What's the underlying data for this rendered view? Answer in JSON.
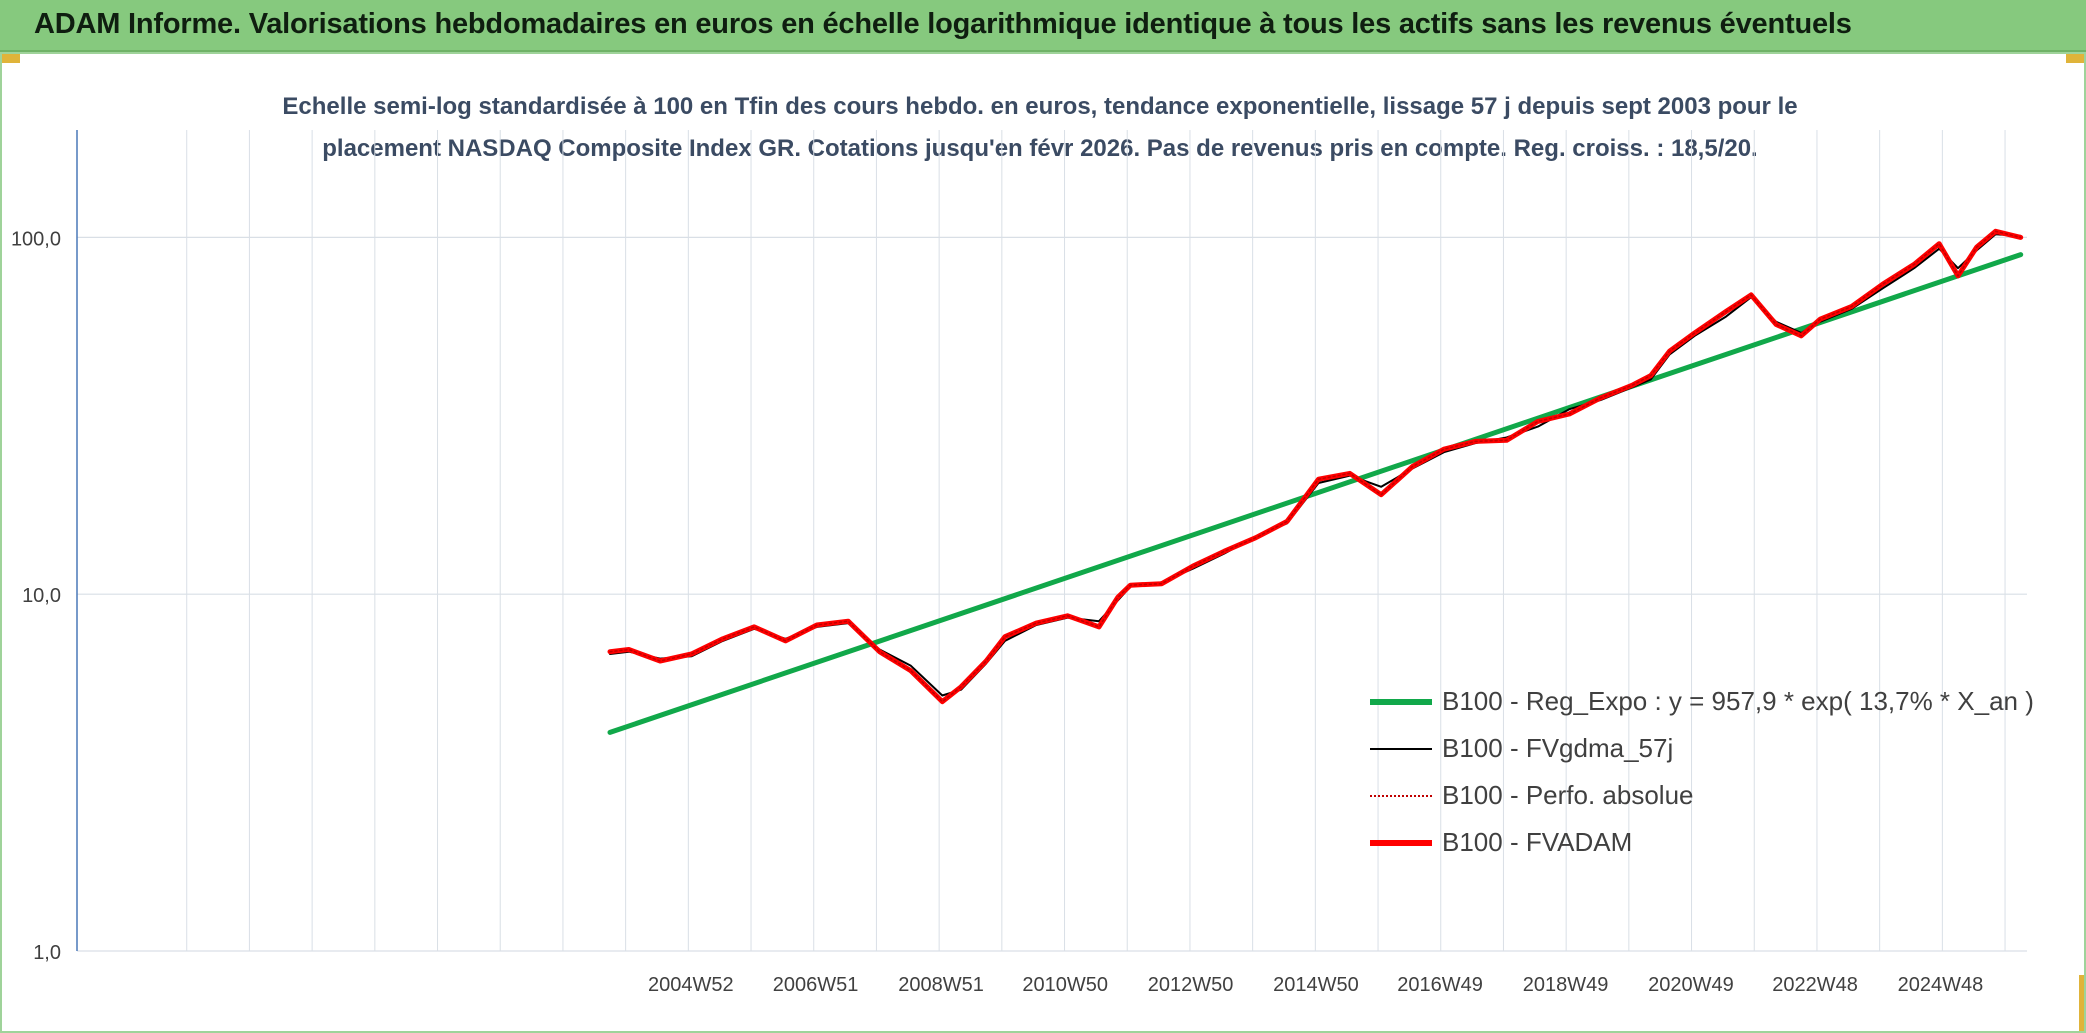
{
  "banner": {
    "title": "ADAM Informe. Valorisations hebdomadaires en euros en échelle logarithmique identique à tous les actifs sans les revenus éventuels"
  },
  "chart_data": {
    "type": "line",
    "title_line1": "Echelle semi-log standardisée à 100 en Tfin des cours hebdo. en euros, tendance exponentielle, lissage 57 j depuis sept 2003 pour le",
    "title_line2": "placement NASDAQ Composite Index GR. Cotations jusqu'en févr 2026. Pas de revenus pris en compte. Reg. croiss. : 18,5/20.",
    "y_scale": "log",
    "ylim": [
      1,
      200
    ],
    "xlim": [
      1995.2,
      2026.3
    ],
    "y_ticks": [
      {
        "value": 1,
        "label": "1,0"
      },
      {
        "value": 10,
        "label": "10,0"
      },
      {
        "value": 100,
        "label": "100,0"
      }
    ],
    "x_ticks": [
      {
        "value": 2004.99,
        "label": "2004W52"
      },
      {
        "value": 2006.98,
        "label": "2006W51"
      },
      {
        "value": 2008.98,
        "label": "2008W51"
      },
      {
        "value": 2010.96,
        "label": "2010W50"
      },
      {
        "value": 2012.96,
        "label": "2012W50"
      },
      {
        "value": 2014.96,
        "label": "2014W50"
      },
      {
        "value": 2016.94,
        "label": "2016W49"
      },
      {
        "value": 2018.94,
        "label": "2018W49"
      },
      {
        "value": 2020.94,
        "label": "2020W49"
      },
      {
        "value": 2022.92,
        "label": "2022W48"
      },
      {
        "value": 2024.92,
        "label": "2024W48"
      }
    ],
    "grid": true,
    "legend_position": "lower-right",
    "series": [
      {
        "name": "B100 - Reg_Expo : y = 957,9 * exp( 13,7% *  X_an )",
        "color": "#11a84a",
        "style": "thick",
        "x": [
          2003.7,
          2026.2
        ],
        "y": [
          4.1,
          89.5
        ]
      },
      {
        "name": "B100 - FVgdma_57j",
        "color": "#000000",
        "style": "thin",
        "x": [
          2003.7,
          2004.0,
          2004.5,
          2005.0,
          2005.5,
          2006.0,
          2006.5,
          2007.0,
          2007.5,
          2008.0,
          2008.5,
          2009.0,
          2009.3,
          2009.7,
          2010.0,
          2010.5,
          2011.0,
          2011.5,
          2011.8,
          2012.0,
          2012.5,
          2013.0,
          2013.5,
          2014.0,
          2014.5,
          2015.0,
          2015.5,
          2016.0,
          2016.5,
          2017.0,
          2017.5,
          2018.0,
          2018.5,
          2019.0,
          2019.5,
          2020.0,
          2020.3,
          2020.6,
          2021.0,
          2021.5,
          2021.9,
          2022.3,
          2022.7,
          2023.0,
          2023.5,
          2024.0,
          2024.5,
          2024.9,
          2025.2,
          2025.5,
          2025.8,
          2026.2
        ],
        "y": [
          6.8,
          6.9,
          6.6,
          6.7,
          7.4,
          8.0,
          7.5,
          8.1,
          8.3,
          7.0,
          6.3,
          5.2,
          5.4,
          6.4,
          7.4,
          8.2,
          8.6,
          8.4,
          9.6,
          10.5,
          10.8,
          11.8,
          13.0,
          14.5,
          15.8,
          20.5,
          21.5,
          20.0,
          22.5,
          25.0,
          26.5,
          27.5,
          29.5,
          33.0,
          35.0,
          38.0,
          40.0,
          47.0,
          53.0,
          60.0,
          68.0,
          58.0,
          54.0,
          58.0,
          63.0,
          72.0,
          82.0,
          93.0,
          82.0,
          92.0,
          102.0,
          101.0
        ]
      },
      {
        "name": "B100 - Perfo. absolue",
        "color": "#c00000",
        "style": "dotted",
        "x": [
          2003.7,
          2004.0,
          2004.5,
          2005.0,
          2005.5,
          2006.0,
          2006.5,
          2007.0,
          2007.5,
          2008.0,
          2008.5,
          2009.0,
          2009.3,
          2009.7,
          2010.0,
          2010.5,
          2011.0,
          2011.5,
          2011.8,
          2012.0,
          2012.5,
          2013.0,
          2013.5,
          2014.0,
          2014.5,
          2015.0,
          2015.5,
          2016.0,
          2016.5,
          2017.0,
          2017.5,
          2018.0,
          2018.5,
          2019.0,
          2019.5,
          2020.0,
          2020.3,
          2020.6,
          2021.0,
          2021.5,
          2021.9,
          2022.3,
          2022.7,
          2023.0,
          2023.5,
          2024.0,
          2024.5,
          2024.9,
          2025.2,
          2025.5,
          2025.8,
          2026.2
        ],
        "y": [
          6.9,
          7.0,
          6.5,
          6.8,
          7.5,
          8.1,
          7.4,
          8.2,
          8.4,
          6.9,
          6.1,
          5.0,
          5.5,
          6.5,
          7.6,
          8.3,
          8.7,
          8.1,
          9.8,
          10.6,
          10.7,
          12.0,
          13.2,
          14.4,
          16.0,
          21.0,
          21.8,
          19.0,
          22.8,
          25.5,
          26.8,
          27.0,
          30.5,
          32.0,
          35.5,
          38.5,
          41.0,
          48.0,
          54.0,
          62.0,
          69.0,
          57.0,
          53.0,
          59.0,
          64.0,
          74.0,
          84.0,
          96.0,
          78.0,
          94.0,
          104.0,
          100.0
        ]
      },
      {
        "name": "B100 - FVADAM",
        "color": "#ff0000",
        "style": "thick",
        "x": [
          2003.7,
          2004.0,
          2004.5,
          2005.0,
          2005.5,
          2006.0,
          2006.5,
          2007.0,
          2007.5,
          2008.0,
          2008.5,
          2009.0,
          2009.3,
          2009.7,
          2010.0,
          2010.5,
          2011.0,
          2011.5,
          2011.8,
          2012.0,
          2012.5,
          2013.0,
          2013.5,
          2014.0,
          2014.5,
          2015.0,
          2015.5,
          2016.0,
          2016.5,
          2017.0,
          2017.5,
          2018.0,
          2018.5,
          2019.0,
          2019.5,
          2020.0,
          2020.3,
          2020.6,
          2021.0,
          2021.5,
          2021.9,
          2022.3,
          2022.7,
          2023.0,
          2023.5,
          2024.0,
          2024.5,
          2024.9,
          2025.2,
          2025.5,
          2025.8,
          2026.2
        ],
        "y": [
          6.9,
          7.0,
          6.5,
          6.8,
          7.5,
          8.1,
          7.4,
          8.2,
          8.4,
          6.9,
          6.1,
          5.0,
          5.5,
          6.5,
          7.6,
          8.3,
          8.7,
          8.1,
          9.8,
          10.6,
          10.7,
          12.0,
          13.2,
          14.4,
          16.0,
          21.0,
          21.8,
          19.0,
          22.8,
          25.5,
          26.8,
          27.0,
          30.5,
          32.0,
          35.5,
          38.5,
          41.0,
          48.0,
          54.0,
          62.0,
          69.0,
          57.0,
          53.0,
          59.0,
          64.0,
          74.0,
          84.0,
          96.0,
          78.0,
          94.0,
          104.0,
          100.0
        ]
      }
    ]
  }
}
